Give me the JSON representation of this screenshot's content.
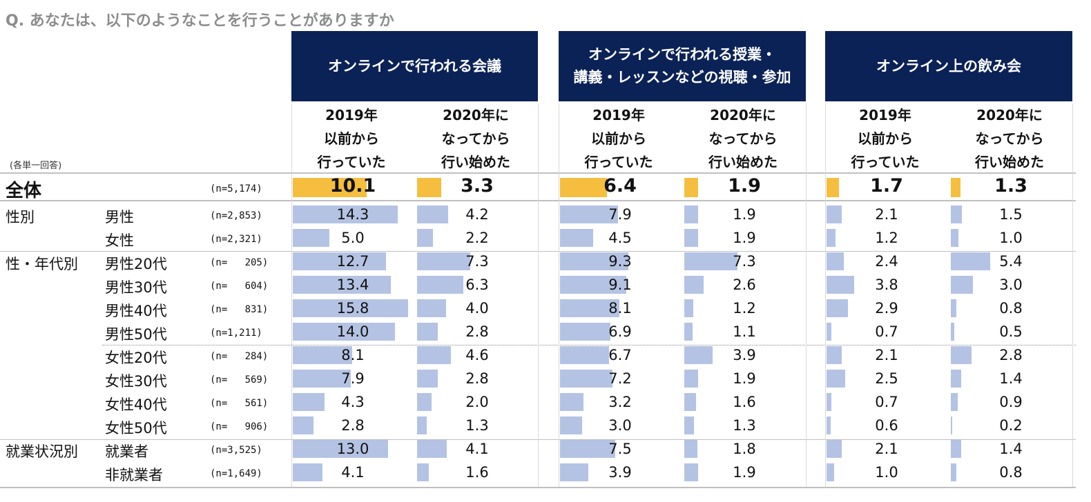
{
  "question": "Q.  あなたは、以下のようなことを行うことがありますか",
  "note": "(各単一回答)",
  "groups": [
    {
      "title": "オンラインで行われる会議"
    },
    {
      "title": "オンラインで行われる授業・\n講義・レッスンなどの視聴・参加"
    },
    {
      "title": "オンライン上の飲み会"
    }
  ],
  "col_labels": [
    "2019年\n以前から\n行っていた",
    "2020年に\nなってから\n行い始めた"
  ],
  "colors": {
    "header_bg": "#0b2257",
    "total_bar": "#f5be3e",
    "bar": "#b4c3e3"
  },
  "rows": [
    {
      "category": "全体",
      "label": "",
      "n": "(n=5,174)",
      "total": true,
      "values": [
        "10.1",
        "3.3",
        "6.4",
        "1.9",
        "1.7",
        "1.3"
      ]
    },
    {
      "category": "性別",
      "label": "男性",
      "n": "(n=2,853)",
      "values": [
        "14.3",
        "4.2",
        "7.9",
        "1.9",
        "2.1",
        "1.5"
      ]
    },
    {
      "category": "",
      "label": "女性",
      "n": "(n=2,321)",
      "values": [
        "5.0",
        "2.2",
        "4.5",
        "1.9",
        "1.2",
        "1.0"
      ]
    },
    {
      "category": "性・年代別",
      "label": "男性20代",
      "n": "(n=   205)",
      "values": [
        "12.7",
        "7.3",
        "9.3",
        "7.3",
        "2.4",
        "5.4"
      ]
    },
    {
      "category": "",
      "label": "男性30代",
      "n": "(n=   604)",
      "values": [
        "13.4",
        "6.3",
        "9.1",
        "2.6",
        "3.8",
        "3.0"
      ]
    },
    {
      "category": "",
      "label": "男性40代",
      "n": "(n=   831)",
      "values": [
        "15.8",
        "4.0",
        "8.1",
        "1.2",
        "2.9",
        "0.8"
      ]
    },
    {
      "category": "",
      "label": "男性50代",
      "n": "(n=1,211)",
      "values": [
        "14.0",
        "2.8",
        "6.9",
        "1.1",
        "0.7",
        "0.5"
      ]
    },
    {
      "category": "",
      "label": "女性20代",
      "n": "(n=   284)",
      "values": [
        "8.1",
        "4.6",
        "6.7",
        "3.9",
        "2.1",
        "2.8"
      ]
    },
    {
      "category": "",
      "label": "女性30代",
      "n": "(n=   569)",
      "values": [
        "7.9",
        "2.8",
        "7.2",
        "1.9",
        "2.5",
        "1.4"
      ]
    },
    {
      "category": "",
      "label": "女性40代",
      "n": "(n=   561)",
      "values": [
        "4.3",
        "2.0",
        "3.2",
        "1.6",
        "0.7",
        "0.9"
      ]
    },
    {
      "category": "",
      "label": "女性50代",
      "n": "(n=   906)",
      "values": [
        "2.8",
        "1.3",
        "3.0",
        "1.3",
        "0.6",
        "0.2"
      ]
    },
    {
      "category": "就業状況別",
      "label": "就業者",
      "n": "(n=3,525)",
      "values": [
        "13.0",
        "4.1",
        "7.5",
        "1.8",
        "2.1",
        "1.4"
      ]
    },
    {
      "category": "",
      "label": "非就業者",
      "n": "(n=1,649)",
      "values": [
        "4.1",
        "1.6",
        "3.9",
        "1.9",
        "1.0",
        "0.8"
      ]
    }
  ],
  "chart_data": {
    "type": "table",
    "columns": [
      "オンラインで行われる会議 / 2019年以前から行っていた",
      "オンラインで行われる会議 / 2020年になってから行い始めた",
      "オンラインで行われる授業・講義・レッスンなどの視聴・参加 / 2019年以前から行っていた",
      "オンラインで行われる授業・講義・レッスンなどの視聴・参加 / 2020年になってから行い始めた",
      "オンライン上の飲み会 / 2019年以前から行っていた",
      "オンライン上の飲み会 / 2020年になってから行い始めた"
    ],
    "row_labels": [
      "全体",
      "男性",
      "女性",
      "男性20代",
      "男性30代",
      "男性40代",
      "男性50代",
      "女性20代",
      "女性30代",
      "女性40代",
      "女性50代",
      "就業者",
      "非就業者"
    ],
    "values": [
      [
        10.1,
        3.3,
        6.4,
        1.9,
        1.7,
        1.3
      ],
      [
        14.3,
        4.2,
        7.9,
        1.9,
        2.1,
        1.5
      ],
      [
        5.0,
        2.2,
        4.5,
        1.9,
        1.2,
        1.0
      ],
      [
        12.7,
        7.3,
        9.3,
        7.3,
        2.4,
        5.4
      ],
      [
        13.4,
        6.3,
        9.1,
        2.6,
        3.8,
        3.0
      ],
      [
        15.8,
        4.0,
        8.1,
        1.2,
        2.9,
        0.8
      ],
      [
        14.0,
        2.8,
        6.9,
        1.1,
        0.7,
        0.5
      ],
      [
        8.1,
        4.6,
        6.7,
        3.9,
        2.1,
        2.8
      ],
      [
        7.9,
        2.8,
        7.2,
        1.9,
        2.5,
        1.4
      ],
      [
        4.3,
        2.0,
        3.2,
        1.6,
        0.7,
        0.9
      ],
      [
        2.8,
        1.3,
        3.0,
        1.3,
        0.6,
        0.2
      ],
      [
        13.0,
        4.1,
        7.5,
        1.8,
        2.1,
        1.4
      ],
      [
        4.1,
        1.6,
        3.9,
        1.9,
        1.0,
        0.8
      ]
    ]
  }
}
